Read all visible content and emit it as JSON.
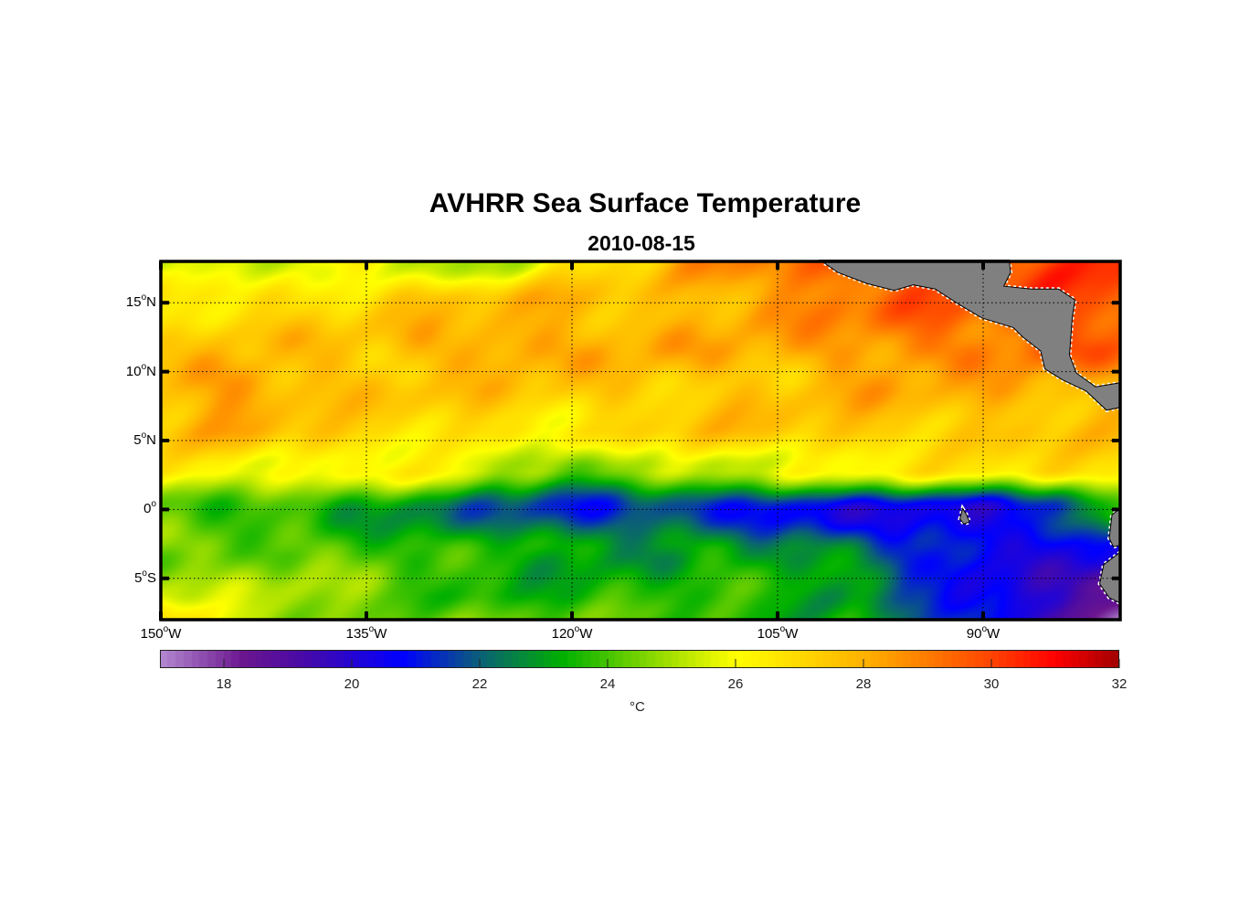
{
  "chart_data": {
    "type": "heatmap",
    "title": "AVHRR Sea Surface Temperature",
    "subtitle": "2010-08-15",
    "xlim": [
      -150,
      -80
    ],
    "ylim": [
      -8,
      18
    ],
    "grid": "dotted",
    "x_ticks": [
      {
        "value": -150,
        "deg": "150",
        "hemi": "W"
      },
      {
        "value": -135,
        "deg": "135",
        "hemi": "W"
      },
      {
        "value": -120,
        "deg": "120",
        "hemi": "W"
      },
      {
        "value": -105,
        "deg": "105",
        "hemi": "W"
      },
      {
        "value": -90,
        "deg": "90",
        "hemi": "W"
      }
    ],
    "y_ticks": [
      {
        "value": 15,
        "deg": "15",
        "hemi": "N"
      },
      {
        "value": 10,
        "deg": "10",
        "hemi": "N"
      },
      {
        "value": 5,
        "deg": "5",
        "hemi": "N"
      },
      {
        "value": 0,
        "deg": "0",
        "hemi": ""
      },
      {
        "value": -5,
        "deg": "5",
        "hemi": "S"
      }
    ],
    "grid_lons": [
      -150,
      -145,
      -140,
      -135,
      -130,
      -125,
      -120,
      -115,
      -110,
      -105,
      -100,
      -95,
      -90,
      -85,
      -80
    ],
    "grid_lats": [
      18,
      15,
      12,
      9,
      6,
      3,
      0,
      -3,
      -6,
      -8
    ],
    "sst_celsius": [
      [
        25,
        25.5,
        25,
        26.5,
        25,
        25.5,
        26.5,
        27,
        28.5,
        29,
        29.5,
        29.5,
        29.5,
        30,
        30
      ],
      [
        26.5,
        27,
        27,
        27,
        27.5,
        27.5,
        28,
        27.5,
        28,
        28.5,
        29,
        29.5,
        29.5,
        30,
        30
      ],
      [
        27,
        27.5,
        27.5,
        27.5,
        28,
        28.5,
        28,
        28,
        28,
        28,
        28.5,
        29,
        29,
        29.5,
        29.5
      ],
      [
        28,
        28.5,
        28,
        27.5,
        27.5,
        27.5,
        27.5,
        27.5,
        27.5,
        27.5,
        28,
        28,
        28,
        28,
        28
      ],
      [
        27.5,
        28,
        27.5,
        27,
        27,
        27,
        26.5,
        27,
        27.5,
        27.5,
        27.5,
        27.5,
        27.5,
        27.5,
        27.5
      ],
      [
        26.5,
        26.5,
        26,
        26.5,
        26,
        25,
        24,
        25.5,
        25.5,
        26,
        26,
        26.5,
        26.5,
        27,
        27
      ],
      [
        24,
        23.5,
        23.5,
        23,
        22.5,
        22,
        21,
        21.5,
        21,
        20.5,
        20.5,
        20.5,
        20.5,
        21,
        24
      ],
      [
        24.5,
        24.5,
        24.5,
        24,
        23.5,
        23.5,
        23,
        23,
        23.5,
        23,
        22.5,
        21,
        20.5,
        20.5,
        20.5
      ],
      [
        25.5,
        25,
        25,
        24.5,
        24,
        23.5,
        23.5,
        23.5,
        23.5,
        23.5,
        23,
        22,
        20.5,
        20,
        18
      ],
      [
        27,
        25.5,
        25,
        24.5,
        24.5,
        24,
        24,
        24,
        24,
        23.5,
        23.5,
        22,
        20.5,
        19.5,
        17
      ]
    ],
    "land": [
      [
        [
          -101.9,
          18.1
        ],
        [
          -100.6,
          17.2
        ],
        [
          -98.5,
          16.4
        ],
        [
          -96.5,
          15.9
        ],
        [
          -95.1,
          16.3
        ],
        [
          -93.5,
          16.0
        ],
        [
          -91.8,
          14.9
        ],
        [
          -90.1,
          13.9
        ],
        [
          -87.8,
          13.2
        ],
        [
          -87.1,
          12.5
        ],
        [
          -85.8,
          11.5
        ],
        [
          -85.5,
          10.2
        ],
        [
          -84.2,
          9.4
        ],
        [
          -82.5,
          8.6
        ],
        [
          -81.0,
          7.2
        ],
        [
          -80.0,
          7.4
        ],
        [
          -80.0,
          9.2
        ],
        [
          -81.8,
          8.9
        ],
        [
          -83.2,
          9.9
        ],
        [
          -83.7,
          11.2
        ],
        [
          -83.5,
          13.9
        ],
        [
          -83.3,
          15.2
        ],
        [
          -84.5,
          16.0
        ],
        [
          -86.5,
          16.0
        ],
        [
          -88.5,
          16.2
        ],
        [
          -88.0,
          17.2
        ],
        [
          -88.1,
          18.1
        ]
      ],
      [
        [
          -80.0,
          0.1
        ],
        [
          -80.6,
          -0.4
        ],
        [
          -80.8,
          -2.1
        ],
        [
          -80.5,
          -2.7
        ],
        [
          -80.0,
          -2.6
        ]
      ],
      [
        [
          -80.0,
          -3.1
        ],
        [
          -81.2,
          -4.0
        ],
        [
          -81.5,
          -5.4
        ],
        [
          -80.8,
          -6.4
        ],
        [
          -80.0,
          -6.8
        ]
      ],
      [
        [
          -91.5,
          0.07
        ],
        [
          -91.2,
          -0.4
        ],
        [
          -91.0,
          -0.9
        ],
        [
          -91.4,
          -1.06
        ],
        [
          -91.7,
          -0.7
        ]
      ]
    ],
    "colorbar": {
      "range": [
        17,
        32
      ],
      "ticks": [
        "18",
        "20",
        "22",
        "24",
        "26",
        "28",
        "30",
        "32"
      ],
      "label": "°C",
      "stops": [
        [
          17,
          "#b38ad0"
        ],
        [
          18.3,
          "#6b168f"
        ],
        [
          19.2,
          "#4a0aa5"
        ],
        [
          20.8,
          "#0000ff"
        ],
        [
          22,
          "#0b5f78"
        ],
        [
          23.3,
          "#00b000"
        ],
        [
          25,
          "#a6e000"
        ],
        [
          26,
          "#ffff00"
        ],
        [
          28,
          "#ffb300"
        ],
        [
          30,
          "#ff4400"
        ],
        [
          31,
          "#ff0000"
        ],
        [
          32,
          "#a00000"
        ]
      ]
    }
  }
}
